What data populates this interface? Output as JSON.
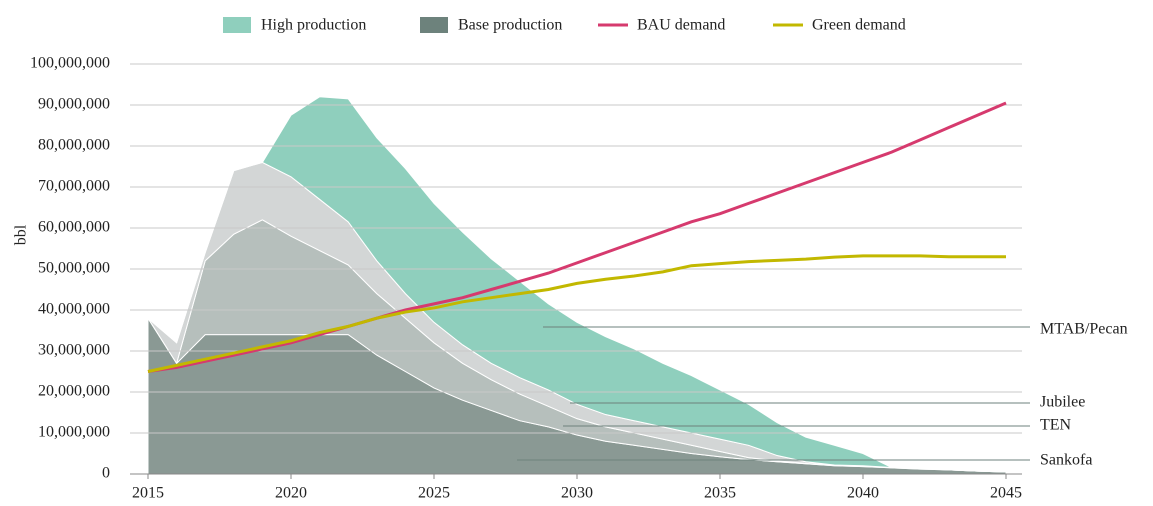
{
  "chart_data": {
    "type": "stacked_area_line",
    "y_label": "bbl",
    "x": [
      2015,
      2016,
      2017,
      2018,
      2019,
      2020,
      2021,
      2022,
      2023,
      2024,
      2025,
      2026,
      2027,
      2028,
      2029,
      2030,
      2031,
      2032,
      2033,
      2034,
      2035,
      2036,
      2037,
      2038,
      2039,
      2040,
      2041,
      2042,
      2043,
      2044,
      2045
    ],
    "xlim": [
      2015,
      2045
    ],
    "xticks": [
      2015,
      2020,
      2025,
      2030,
      2035,
      2040,
      2045
    ],
    "ylim": [
      0,
      100000000
    ],
    "yticks": [
      0,
      {
        "value": 10000000,
        "label": "10,000,000"
      },
      {
        "value": 20000000,
        "label": "20,000,000"
      },
      {
        "value": 30000000,
        "label": "30,000,000"
      },
      {
        "value": 40000000,
        "label": "40,000,000"
      },
      {
        "value": 50000000,
        "label": "50,000,000"
      },
      {
        "value": 60000000,
        "label": "60,000,000"
      },
      {
        "value": 70000000,
        "label": "70,000,000"
      },
      {
        "value": 80000000,
        "label": "80,000,000"
      },
      {
        "value": 90000000,
        "label": "90,000,000"
      },
      {
        "value": 100000000,
        "label": "100,000,000"
      }
    ],
    "grid": true,
    "legend": [
      {
        "name": "High production",
        "color": "#8fcfbd",
        "kind": "area"
      },
      {
        "name": "Base production",
        "color": "#6d827c",
        "kind": "area"
      },
      {
        "name": "BAU demand",
        "color": "#d63a6e",
        "kind": "line"
      },
      {
        "name": "Green demand",
        "color": "#c2b800",
        "kind": "line"
      }
    ],
    "areas": [
      {
        "label": "Sankofa",
        "color": "#8a9994",
        "values": [
          38000000,
          27000000,
          34000000,
          34000000,
          34000000,
          34000000,
          34000000,
          34000000,
          29000000,
          25000000,
          21000000,
          18000000,
          15500000,
          13000000,
          11500000,
          9500000,
          8000000,
          7000000,
          6000000,
          5000000,
          4200000,
          3500000,
          3000000,
          2500000,
          2000000,
          1800000,
          1500000,
          1200000,
          1000000,
          700000,
          500000
        ]
      },
      {
        "label": "TEN",
        "color": "#b6bfbc",
        "values": [
          0,
          0,
          18000000,
          24500000,
          28000000,
          24000000,
          20500000,
          17000000,
          15000000,
          13000000,
          11000000,
          9000000,
          7500000,
          6500000,
          5000000,
          4000000,
          3500000,
          3000000,
          2500000,
          2000000,
          1300000,
          500000,
          200000,
          100000,
          100000,
          100000,
          100000,
          100000,
          0,
          0,
          0
        ]
      },
      {
        "label": "Jubilee",
        "color": "#d3d6d6",
        "values": [
          0,
          5000000,
          2000000,
          15500000,
          14000000,
          14500000,
          12500000,
          10500000,
          8000000,
          6000000,
          5000000,
          4500000,
          4000000,
          4000000,
          4000000,
          3500000,
          3000000,
          3000000,
          3000000,
          3000000,
          3000000,
          3000000,
          1300000,
          400000,
          100000,
          100000,
          0,
          0,
          0,
          0,
          0
        ]
      },
      {
        "label": "MTAB/Pecan",
        "color": "#8fcfbd",
        "values": [
          0,
          0,
          0,
          0,
          0,
          15000000,
          25000000,
          30000000,
          30000000,
          30500000,
          29000000,
          27500000,
          25500000,
          23500000,
          21000000,
          20000000,
          19000000,
          17500000,
          15500000,
          14000000,
          12000000,
          10000000,
          8000000,
          6000000,
          4800000,
          3000000,
          0,
          0,
          0,
          0,
          0
        ]
      }
    ],
    "lines": [
      {
        "name": "BAU demand",
        "color": "#d63a6e",
        "values": [
          25000000,
          26000000,
          27500000,
          29000000,
          30500000,
          32000000,
          34000000,
          36000000,
          38000000,
          40000000,
          41500000,
          43000000,
          45000000,
          47000000,
          49000000,
          51500000,
          54000000,
          56500000,
          59000000,
          61500000,
          63500000,
          66000000,
          68500000,
          71000000,
          73500000,
          76000000,
          78500000,
          81500000,
          84500000,
          87500000,
          90500000
        ]
      },
      {
        "name": "Green demand",
        "color": "#c2b800",
        "values": [
          25000000,
          26500000,
          28000000,
          29500000,
          31000000,
          32500000,
          34500000,
          36000000,
          38000000,
          39500000,
          40500000,
          42000000,
          43000000,
          44000000,
          45000000,
          46500000,
          47500000,
          48300000,
          49300000,
          50800000,
          51300000,
          51800000,
          52100000,
          52400000,
          52900000,
          53200000,
          53200000,
          53200000,
          53000000,
          53000000,
          53000000
        ]
      }
    ]
  }
}
